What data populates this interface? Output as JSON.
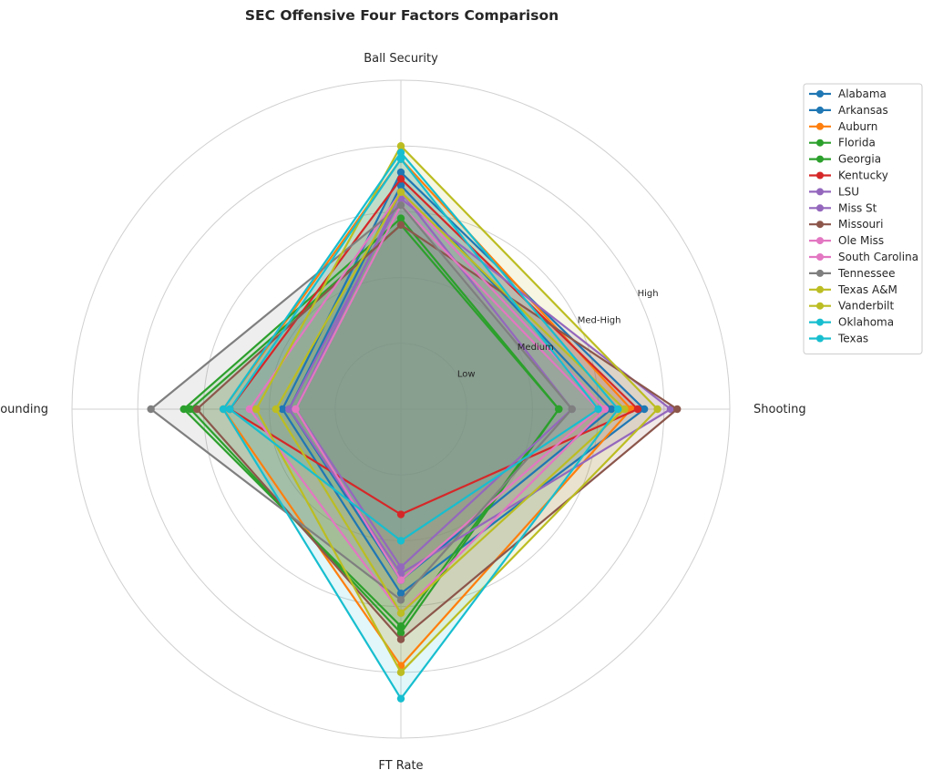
{
  "chart_data": {
    "type": "radar",
    "title": "SEC Offensive Four Factors Comparison",
    "axes": [
      "Ball Security",
      "Shooting",
      "FT Rate",
      "Off Rebounding"
    ],
    "rlim": [
      0,
      5
    ],
    "grid": true,
    "ring_labels": [
      "Low",
      "Medium",
      "Med-High",
      "High"
    ],
    "legend_position": "upper-right-outside",
    "series": [
      {
        "name": "Alabama",
        "color": "#1f77b4",
        "values": [
          3.6,
          3.7,
          2.8,
          1.8
        ]
      },
      {
        "name": "Arkansas",
        "color": "#1f77b4",
        "values": [
          3.4,
          3.2,
          2.6,
          1.7
        ]
      },
      {
        "name": "Auburn",
        "color": "#ff7f0e",
        "values": [
          3.8,
          3.5,
          3.9,
          2.7
        ]
      },
      {
        "name": "Florida",
        "color": "#2ca02c",
        "values": [
          2.9,
          2.4,
          3.3,
          3.3
        ]
      },
      {
        "name": "Georgia",
        "color": "#2ca02c",
        "values": [
          2.8,
          2.4,
          3.4,
          3.2
        ]
      },
      {
        "name": "Kentucky",
        "color": "#d62728",
        "values": [
          3.5,
          3.6,
          1.6,
          2.6
        ]
      },
      {
        "name": "LSU",
        "color": "#9467bd",
        "values": [
          3.3,
          2.6,
          2.4,
          1.6
        ]
      },
      {
        "name": "Miss St",
        "color": "#9467bd",
        "values": [
          3.2,
          4.1,
          2.5,
          1.7
        ]
      },
      {
        "name": "Missouri",
        "color": "#8c564b",
        "values": [
          2.8,
          4.2,
          3.5,
          3.1
        ]
      },
      {
        "name": "Ole Miss",
        "color": "#e377c2",
        "values": [
          3.3,
          3.1,
          3.1,
          2.3
        ]
      },
      {
        "name": "South Carolina",
        "color": "#e377c2",
        "values": [
          3.1,
          3.0,
          2.6,
          1.6
        ]
      },
      {
        "name": "Tennessee",
        "color": "#7f7f7f",
        "values": [
          3.1,
          2.6,
          2.9,
          3.8
        ]
      },
      {
        "name": "Texas A&M",
        "color": "#bcbd22",
        "values": [
          3.3,
          3.4,
          3.1,
          1.9
        ]
      },
      {
        "name": "Vanderbilt",
        "color": "#bcbd22",
        "values": [
          4.0,
          3.9,
          4.0,
          2.2
        ]
      },
      {
        "name": "Oklahoma",
        "color": "#17becf",
        "values": [
          3.9,
          3.3,
          4.4,
          2.7
        ]
      },
      {
        "name": "Texas",
        "color": "#17becf",
        "values": [
          3.8,
          3.0,
          2.0,
          2.6
        ]
      }
    ]
  }
}
